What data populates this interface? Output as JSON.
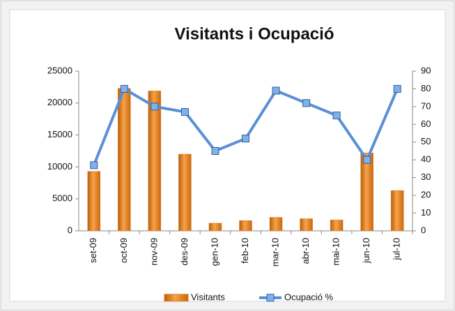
{
  "chart_data": {
    "type": "bar-line",
    "title": "Visitants i Ocupació",
    "categories": [
      "set-09",
      "oct-09",
      "nov-09",
      "des-09",
      "gen-10",
      "feb-10",
      "mar-10",
      "abr-10",
      "mai-10",
      "jun-10",
      "jul-10"
    ],
    "series": [
      {
        "name": "Visitants",
        "type": "bar",
        "color": "#e07b1a",
        "values": [
          9300,
          22300,
          21900,
          12000,
          1200,
          1600,
          2100,
          1900,
          1700,
          12200,
          6300
        ]
      },
      {
        "name": "Ocupació %",
        "type": "line",
        "axis": "y2",
        "color": "#5b8fd6",
        "values": [
          37,
          80,
          70,
          67,
          45,
          52,
          79,
          72,
          65,
          40,
          80
        ]
      }
    ],
    "ylim": [
      0,
      25000
    ],
    "yticks": [
      0,
      5000,
      10000,
      15000,
      20000,
      25000
    ],
    "y2lim": [
      0,
      90
    ],
    "y2ticks": [
      0,
      10,
      20,
      30,
      40,
      50,
      60,
      70,
      80,
      90
    ],
    "legend": "bottom"
  }
}
